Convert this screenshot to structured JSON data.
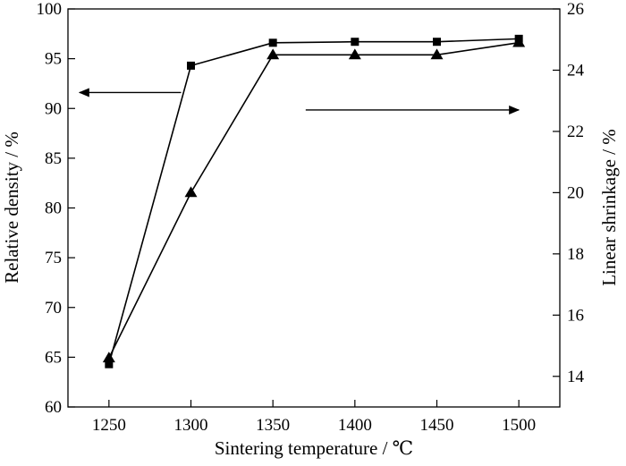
{
  "chart_data": {
    "type": "line",
    "xlabel": "Sintering temperature / ℃",
    "ylabel_left": "Relative density / %",
    "ylabel_right": "Linear shrinkage / %",
    "xlim": [
      1225,
      1525
    ],
    "ylim_left": [
      60,
      100
    ],
    "ylim_right": [
      13,
      26
    ],
    "x_ticks": [
      1250,
      1300,
      1350,
      1400,
      1450,
      1500
    ],
    "y_ticks_left": [
      60,
      65,
      70,
      75,
      80,
      85,
      90,
      95,
      100
    ],
    "y_ticks_right": [
      14,
      16,
      18,
      20,
      22,
      24,
      26
    ],
    "grid": false,
    "series": [
      {
        "axis": "left",
        "marker": "square",
        "x": [
          1250,
          1300,
          1350,
          1400,
          1450,
          1500
        ],
        "values": [
          64.3,
          94.3,
          96.6,
          96.7,
          96.7,
          97.0
        ]
      },
      {
        "axis": "right",
        "marker": "triangle",
        "x": [
          1250,
          1300,
          1350,
          1400,
          1450,
          1500
        ],
        "values": [
          14.6,
          20.0,
          24.5,
          24.5,
          24.5,
          24.9
        ]
      }
    ],
    "annotations": [
      {
        "type": "arrow",
        "direction": "left",
        "points_to": "left-axis",
        "x_from": 1294,
        "x_to": 1232,
        "y": 91.6
      },
      {
        "type": "arrow",
        "direction": "right",
        "points_to": "right-axis",
        "x_from": 1370,
        "x_to": 1500,
        "y": 22.7
      }
    ]
  }
}
